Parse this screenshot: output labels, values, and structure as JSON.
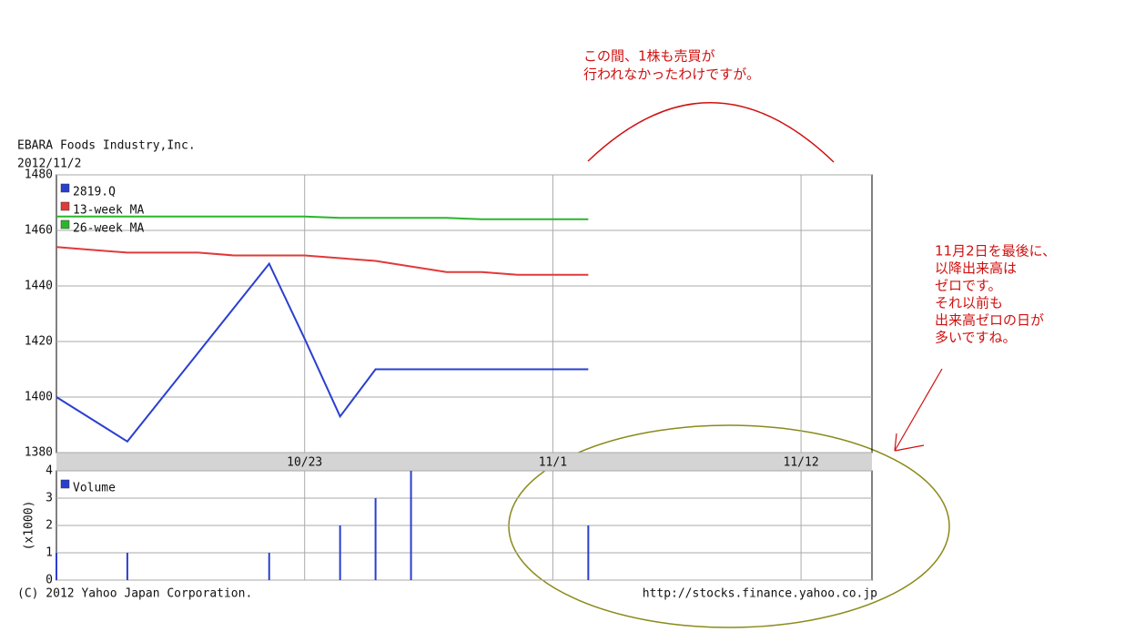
{
  "chart_data": [
    {
      "type": "line",
      "title": "EBARA Foods Industry,Inc.",
      "subtitle": "2012/11/2",
      "categories": [
        null,
        null,
        null,
        null,
        null,
        null,
        null,
        "10/23",
        null,
        null,
        null,
        null,
        null,
        null,
        "11/1",
        null,
        null,
        null,
        null,
        null,
        null,
        "11/12",
        null,
        null
      ],
      "series": [
        {
          "name": "2819.Q",
          "color": "#2a3fd0",
          "values": [
            1400,
            1392,
            1384,
            1400,
            1416,
            1432,
            1448,
            1421,
            1393,
            1410,
            1410,
            1410,
            1410,
            1410,
            1410,
            1410,
            null,
            null,
            null,
            null,
            null,
            null,
            null,
            null
          ]
        },
        {
          "name": "13-week MA",
          "color": "#e03a3a",
          "values": [
            1454,
            1453,
            1452,
            1452,
            1452,
            1451,
            1451,
            1451,
            1450,
            1449,
            1447,
            1445,
            1445,
            1444,
            1444,
            1444,
            null,
            null,
            null,
            null,
            null,
            null,
            null,
            null
          ]
        },
        {
          "name": "26-week MA",
          "color": "#2cb52c",
          "values": [
            1465,
            1465,
            1465,
            1465,
            1465,
            1465,
            1465,
            1465,
            1464.5,
            1464.5,
            1464.5,
            1464.5,
            1464,
            1464,
            1464,
            1464,
            null,
            null,
            null,
            null,
            null,
            null,
            null,
            null
          ]
        }
      ],
      "ylim": [
        1380,
        1480
      ],
      "yticks": [
        1380,
        1400,
        1420,
        1440,
        1460,
        1480
      ],
      "grid": true
    },
    {
      "type": "bar",
      "y_label": "(x1000)",
      "series": [
        {
          "name": "Volume",
          "color": "#2a3fd0",
          "values": [
            1,
            0,
            1,
            0,
            0,
            0,
            1,
            0,
            2,
            3,
            4,
            0,
            0,
            0,
            0,
            2,
            null,
            null,
            null,
            null,
            null,
            null,
            null,
            null
          ]
        }
      ],
      "ylim": [
        0,
        4
      ],
      "yticks": [
        0,
        1,
        2,
        3,
        4
      ],
      "grid": true
    }
  ],
  "copyright": "(C) 2012 Yahoo Japan Corporation.",
  "source": "http://stocks.finance.yahoo.co.jp",
  "annotations": [
    {
      "lines": [
        "この間、1株も売買が",
        "行われなかったわけですが。"
      ]
    },
    {
      "lines": [
        "11月2日を最後に、",
        "以降出来高は",
        "ゼロです。",
        "それ以前も",
        "出来高ゼロの日が",
        "多いですね。"
      ]
    }
  ]
}
